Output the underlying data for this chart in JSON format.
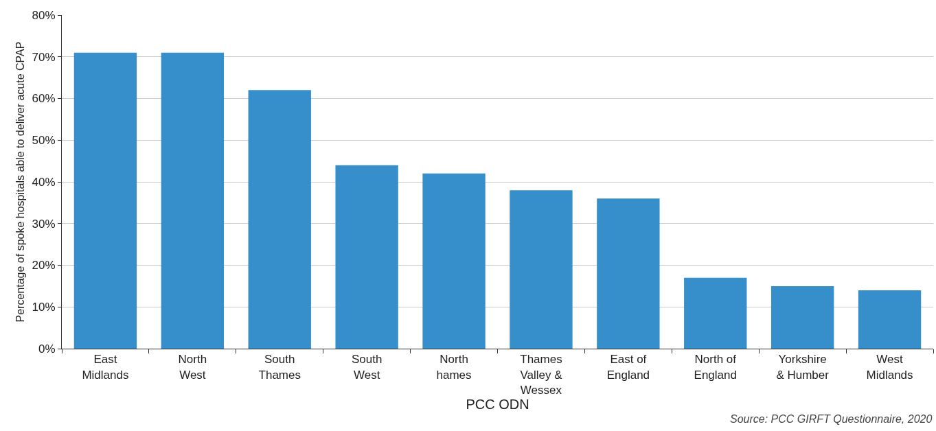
{
  "chart_data": {
    "type": "bar",
    "categories": [
      "East Midlands",
      "North West",
      "South Thames",
      "South West",
      "North hames",
      "Thames Valley & Wessex",
      "East of England",
      "North of England",
      "Yorkshire & Humber",
      "West Midlands"
    ],
    "values": [
      71,
      71,
      62,
      44,
      42,
      38,
      36,
      17,
      15,
      14
    ],
    "color": "#368fcb",
    "xlabel": "PCC ODN",
    "ylabel": "Percentage of spoke hospitals able to deliver acute CPAP",
    "ylim": [
      0,
      80
    ],
    "yticks": [
      {
        "value": 0,
        "label": "0%"
      },
      {
        "value": 10,
        "label": "10%"
      },
      {
        "value": 20,
        "label": "20%"
      },
      {
        "value": 30,
        "label": "30%"
      },
      {
        "value": 40,
        "label": "40%"
      },
      {
        "value": 50,
        "label": "50%"
      },
      {
        "value": 60,
        "label": "60%"
      },
      {
        "value": 70,
        "label": "70%"
      },
      {
        "value": 80,
        "label": "80%"
      }
    ],
    "grid": "y",
    "annotations": [
      "Source: PCC GIRFT Questionnaire, 2020"
    ]
  }
}
